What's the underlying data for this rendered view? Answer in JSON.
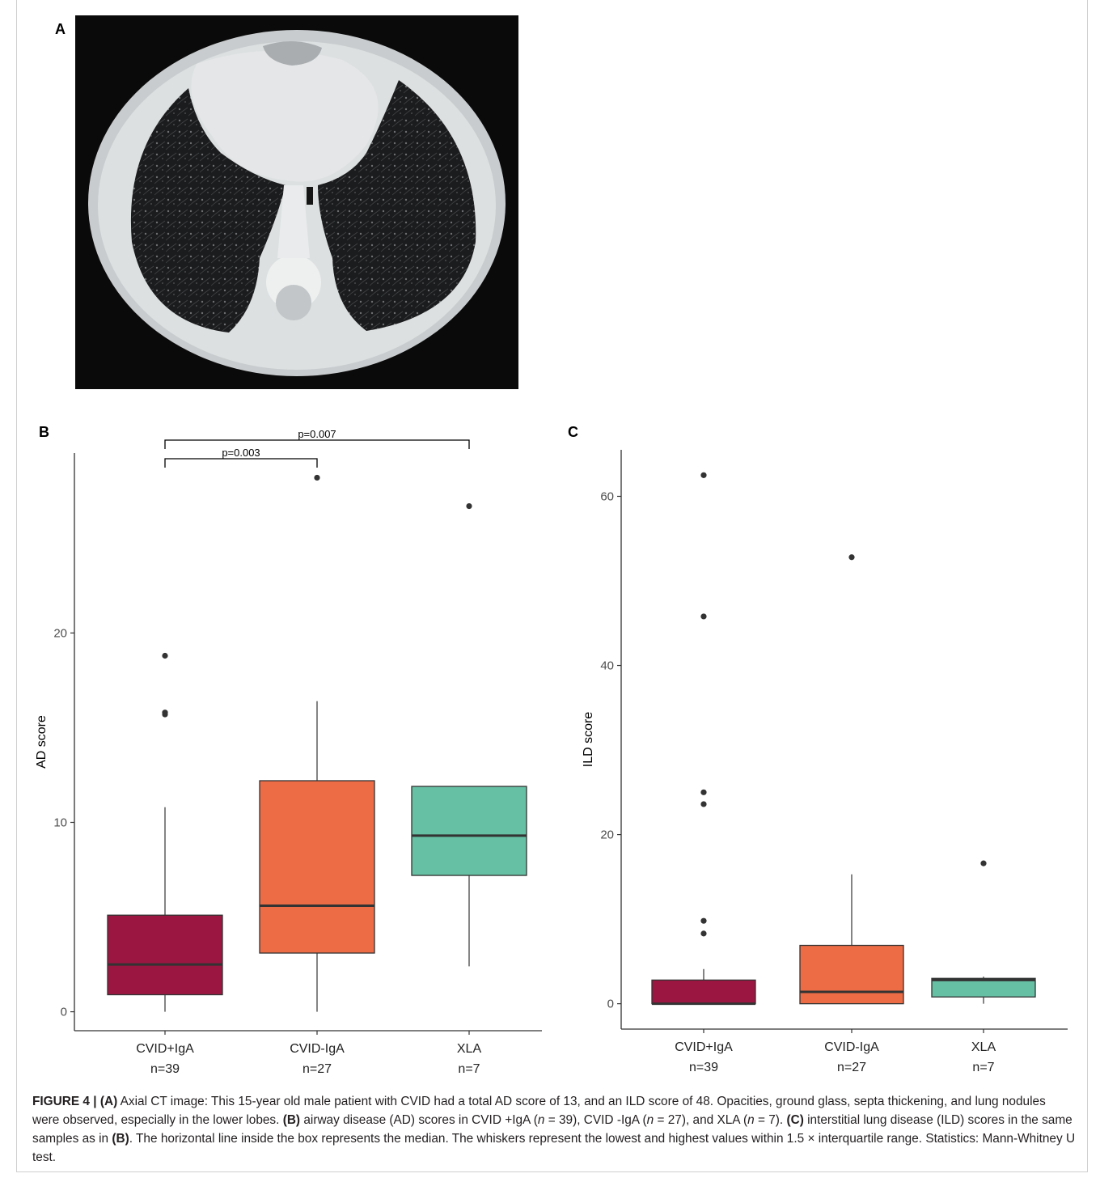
{
  "panels": {
    "a": "A",
    "b": "B",
    "c": "C"
  },
  "ct_image": {
    "depicts": "axial chest CT slice",
    "lettering": ""
  },
  "chart_data": [
    {
      "type": "box",
      "panel": "B",
      "ylabel": "AD score",
      "ylim": [
        -1,
        29.5
      ],
      "yticks": [
        0,
        10,
        20
      ],
      "categories": [
        "CVID+IgA",
        "CVID-IgA",
        "XLA"
      ],
      "category_sublabels": [
        "n=39",
        "n=27",
        "n=7"
      ],
      "colors": [
        "#9b1640",
        "#ee6c45",
        "#66c1a4"
      ],
      "boxes": [
        {
          "whisker_low": 0,
          "q1": 0.9,
          "median": 2.5,
          "q3": 5.1,
          "whisker_high": 10.8,
          "outliers": [
            15.7,
            15.8,
            18.8
          ]
        },
        {
          "whisker_low": 0,
          "q1": 3.1,
          "median": 5.6,
          "q3": 12.2,
          "whisker_high": 16.4,
          "outliers": [
            28.2
          ]
        },
        {
          "whisker_low": 2.4,
          "q1": 7.2,
          "median": 9.3,
          "q3": 11.9,
          "whisker_high": 11.9,
          "outliers": [
            26.7
          ]
        }
      ],
      "brackets": [
        {
          "from": 0,
          "to": 1,
          "label": "p=0.003"
        },
        {
          "from": 0,
          "to": 2,
          "label": "p=0.007"
        }
      ]
    },
    {
      "type": "box",
      "panel": "C",
      "ylabel": "ILD score",
      "ylim": [
        -3,
        65.5
      ],
      "yticks": [
        0,
        20,
        40,
        60
      ],
      "categories": [
        "CVID+IgA",
        "CVID-IgA",
        "XLA"
      ],
      "category_sublabels": [
        "n=39",
        "n=27",
        "n=7"
      ],
      "colors": [
        "#9b1640",
        "#ee6c45",
        "#66c1a4"
      ],
      "boxes": [
        {
          "whisker_low": 0,
          "q1": 0,
          "median": 0,
          "q3": 2.8,
          "whisker_high": 4.1,
          "outliers": [
            8.3,
            9.8,
            23.6,
            25.0,
            45.8,
            62.5
          ]
        },
        {
          "whisker_low": 0,
          "q1": 0,
          "median": 1.4,
          "q3": 6.9,
          "whisker_high": 15.3,
          "outliers": [
            52.8
          ]
        },
        {
          "whisker_low": 0,
          "q1": 0.8,
          "median": 2.8,
          "q3": 3.0,
          "whisker_high": 3.2,
          "outliers": [
            16.6
          ]
        }
      ],
      "brackets": []
    }
  ],
  "caption": {
    "figure_label": "FIGURE 4 |",
    "a_tag": "(A)",
    "a_text": " Axial CT image: This 15-year old male patient with CVID had a total AD score of 13, and an ILD score of 48. Opacities, ground glass, septa thickening, and lung nodules were observed, especially in the lower lobes. ",
    "b_tag": "(B)",
    "b_text1": " airway disease (AD) scores in CVID +IgA (",
    "n_var": "n",
    "b_n1": " = 39), CVID -IgA (",
    "b_n2": " = 27), and XLA (",
    "b_n3": " = 7). ",
    "c_tag": "(C)",
    "c_text1": " interstitial lung disease (ILD) scores in the same samples as in ",
    "c_ref": "(B)",
    "c_text2": ". The horizontal line inside the box represents the median. The whiskers represent the lowest and highest values within 1.5 × interquartile range. Statistics: Mann-Whitney U test."
  }
}
